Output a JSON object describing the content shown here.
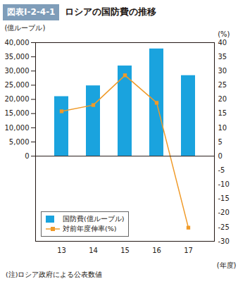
{
  "chart_data": {
    "type": "bar",
    "figure_label": "図表Ⅰ-2-4-1",
    "title": "ロシアの国防費の推移",
    "note": "(注)ロシア政府による公表数値",
    "x_label": "(年度)",
    "y_label": "(億ルーブル)",
    "y2_label": "(%)",
    "categories": [
      "13",
      "14",
      "15",
      "16",
      "17"
    ],
    "series": [
      {
        "name": "国防費(億ルーブル)",
        "type": "bar",
        "color": "#1aa3de",
        "values": [
          21000,
          24800,
          31800,
          37800,
          28400
        ]
      },
      {
        "name": "対前年度伸率(%)",
        "type": "line",
        "axis": "y2",
        "color": "#f09a28",
        "marker": "square",
        "values": [
          15.8,
          18,
          28.5,
          18.8,
          -25.2
        ]
      }
    ],
    "ylim": [
      -30000,
      40000
    ],
    "yticks": [
      0,
      {
        "value": 5000,
        "label": "5,000"
      },
      {
        "value": 10000,
        "label": "10,000"
      },
      {
        "value": 15000,
        "label": "15,000"
      },
      {
        "value": 20000,
        "label": "20,000"
      },
      {
        "value": 25000,
        "label": "25,000"
      },
      {
        "value": 30000,
        "label": "30,000"
      },
      {
        "value": 35000,
        "label": "35,000"
      },
      {
        "value": 40000,
        "label": "40,000"
      }
    ],
    "y2lim": [
      -30,
      40
    ],
    "y2ticks": [
      -30,
      -25,
      -20,
      -15,
      -10,
      -5,
      0,
      5,
      10,
      15,
      20,
      25,
      30,
      35,
      40
    ],
    "legend": "bottom-left",
    "grid": false
  }
}
